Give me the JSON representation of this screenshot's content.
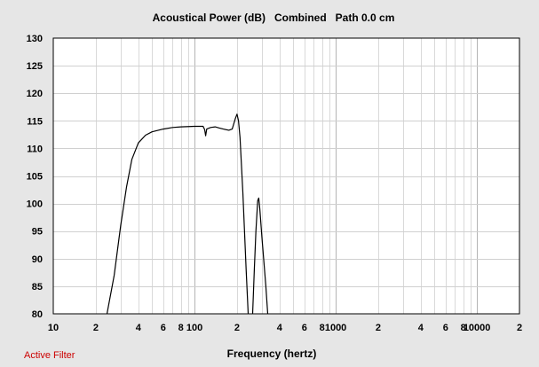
{
  "chart_data": {
    "type": "line",
    "title": "Acoustical Power (dB)   Combined   Path 0.0 cm",
    "xlabel": "Frequency (hertz)",
    "ylabel": "",
    "x_scale": "log",
    "xlim": [
      10,
      20000
    ],
    "ylim": [
      80,
      130
    ],
    "grid": true,
    "y_ticks": [
      80,
      85,
      90,
      95,
      100,
      105,
      110,
      115,
      120,
      125,
      130
    ],
    "x_ticks": [
      {
        "value": 10,
        "label": "10"
      },
      {
        "value": 20,
        "label": "2"
      },
      {
        "value": 40,
        "label": "4"
      },
      {
        "value": 60,
        "label": "6"
      },
      {
        "value": 80,
        "label": "8"
      },
      {
        "value": 100,
        "label": "100"
      },
      {
        "value": 200,
        "label": "2"
      },
      {
        "value": 400,
        "label": "4"
      },
      {
        "value": 600,
        "label": "6"
      },
      {
        "value": 800,
        "label": "8"
      },
      {
        "value": 1000,
        "label": "1000"
      },
      {
        "value": 2000,
        "label": "2"
      },
      {
        "value": 4000,
        "label": "4"
      },
      {
        "value": 6000,
        "label": "6"
      },
      {
        "value": 8000,
        "label": "8"
      },
      {
        "value": 10000,
        "label": "10000"
      },
      {
        "value": 20000,
        "label": "2"
      }
    ],
    "series": [
      {
        "color": "#000000",
        "points": [
          [
            24,
            80
          ],
          [
            27,
            87
          ],
          [
            30,
            96
          ],
          [
            33,
            103
          ],
          [
            36,
            108
          ],
          [
            40,
            111
          ],
          [
            45,
            112.4
          ],
          [
            50,
            113
          ],
          [
            60,
            113.5
          ],
          [
            70,
            113.8
          ],
          [
            80,
            113.9
          ],
          [
            100,
            114
          ],
          [
            115,
            114
          ],
          [
            118,
            113.4
          ],
          [
            120,
            112.3
          ],
          [
            122,
            113.5
          ],
          [
            130,
            113.8
          ],
          [
            140,
            113.9
          ],
          [
            150,
            113.7
          ],
          [
            160,
            113.5
          ],
          [
            175,
            113.3
          ],
          [
            185,
            113.5
          ],
          [
            195,
            115.5
          ],
          [
            200,
            116.2
          ],
          [
            205,
            115
          ],
          [
            210,
            112
          ],
          [
            220,
            102
          ],
          [
            232,
            88
          ],
          [
            240,
            80
          ]
        ]
      },
      {
        "color": "#000000",
        "points": [
          [
            258,
            80
          ],
          [
            265,
            88
          ],
          [
            272,
            95
          ],
          [
            280,
            100.5
          ],
          [
            285,
            101
          ],
          [
            290,
            99
          ],
          [
            300,
            94
          ],
          [
            320,
            85
          ],
          [
            330,
            80
          ]
        ]
      }
    ]
  },
  "status": {
    "label": "Active Filter",
    "color": "#cc0000"
  }
}
